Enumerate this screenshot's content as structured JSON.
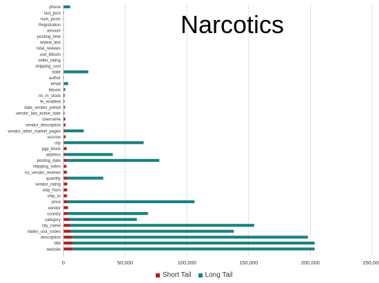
{
  "chart_data": {
    "type": "bar",
    "orientation": "horizontal",
    "stacked": true,
    "title": "Narcotics",
    "xlim": [
      0,
      250000
    ],
    "xticks": [
      "0",
      "50,000",
      "100,000",
      "150,000",
      "200,000",
      "250,000"
    ],
    "xtick_values": [
      0,
      50000,
      100000,
      150000,
      200000,
      250000
    ],
    "grid": "vertical",
    "legend_position": "bottom",
    "colors": {
      "short_tail": "#b71c1c",
      "long_tail": "#1a8280"
    },
    "categories": [
      "phone",
      "last_post",
      "num_posts",
      "Registration",
      "amount",
      "posting_time",
      "review_text",
      "total_reviews",
      "usd_bitcoin",
      "seller_rating",
      "shipping_cost",
      "state",
      "author",
      "email",
      "bitcoin",
      "no_in_stock",
      "fe_enabled",
      "date_vendor_joined",
      "vendor_last_active_date",
      "username",
      "vendor_description",
      "vendor_other_market_pages",
      "escrow",
      "city",
      "pgp_block",
      "address",
      "posting_date",
      "shipping_notes",
      "no_vendor_reviews",
      "quantity",
      "vendor_rating",
      "ship_from",
      "ship_to",
      "price",
      "vendor",
      "country",
      "category",
      "city_name",
      "states_usa_codes",
      "description",
      "title",
      "website"
    ],
    "series": [
      {
        "name": "Short Tail",
        "values": [
          0,
          0,
          0,
          0,
          0,
          0,
          0,
          0,
          0,
          0,
          0,
          200,
          0,
          300,
          1000,
          600,
          600,
          1000,
          600,
          1300,
          1500,
          1500,
          1600,
          1000,
          2400,
          1500,
          2700,
          2200,
          2600,
          2800,
          2900,
          2800,
          2700,
          3200,
          3500,
          3500,
          4500,
          5500,
          6000,
          7000,
          7500,
          7500
        ]
      },
      {
        "name": "Long Tail",
        "values": [
          5500,
          500,
          400,
          400,
          400,
          400,
          300,
          400,
          400,
          400,
          300,
          20000,
          500,
          3500,
          500,
          500,
          300,
          200,
          300,
          200,
          200,
          15000,
          300,
          64000,
          200,
          38500,
          75000,
          200,
          200,
          29500,
          200,
          200,
          200,
          103000,
          200,
          65000,
          55000,
          149000,
          132000,
          191000,
          196000,
          196000
        ]
      }
    ]
  }
}
